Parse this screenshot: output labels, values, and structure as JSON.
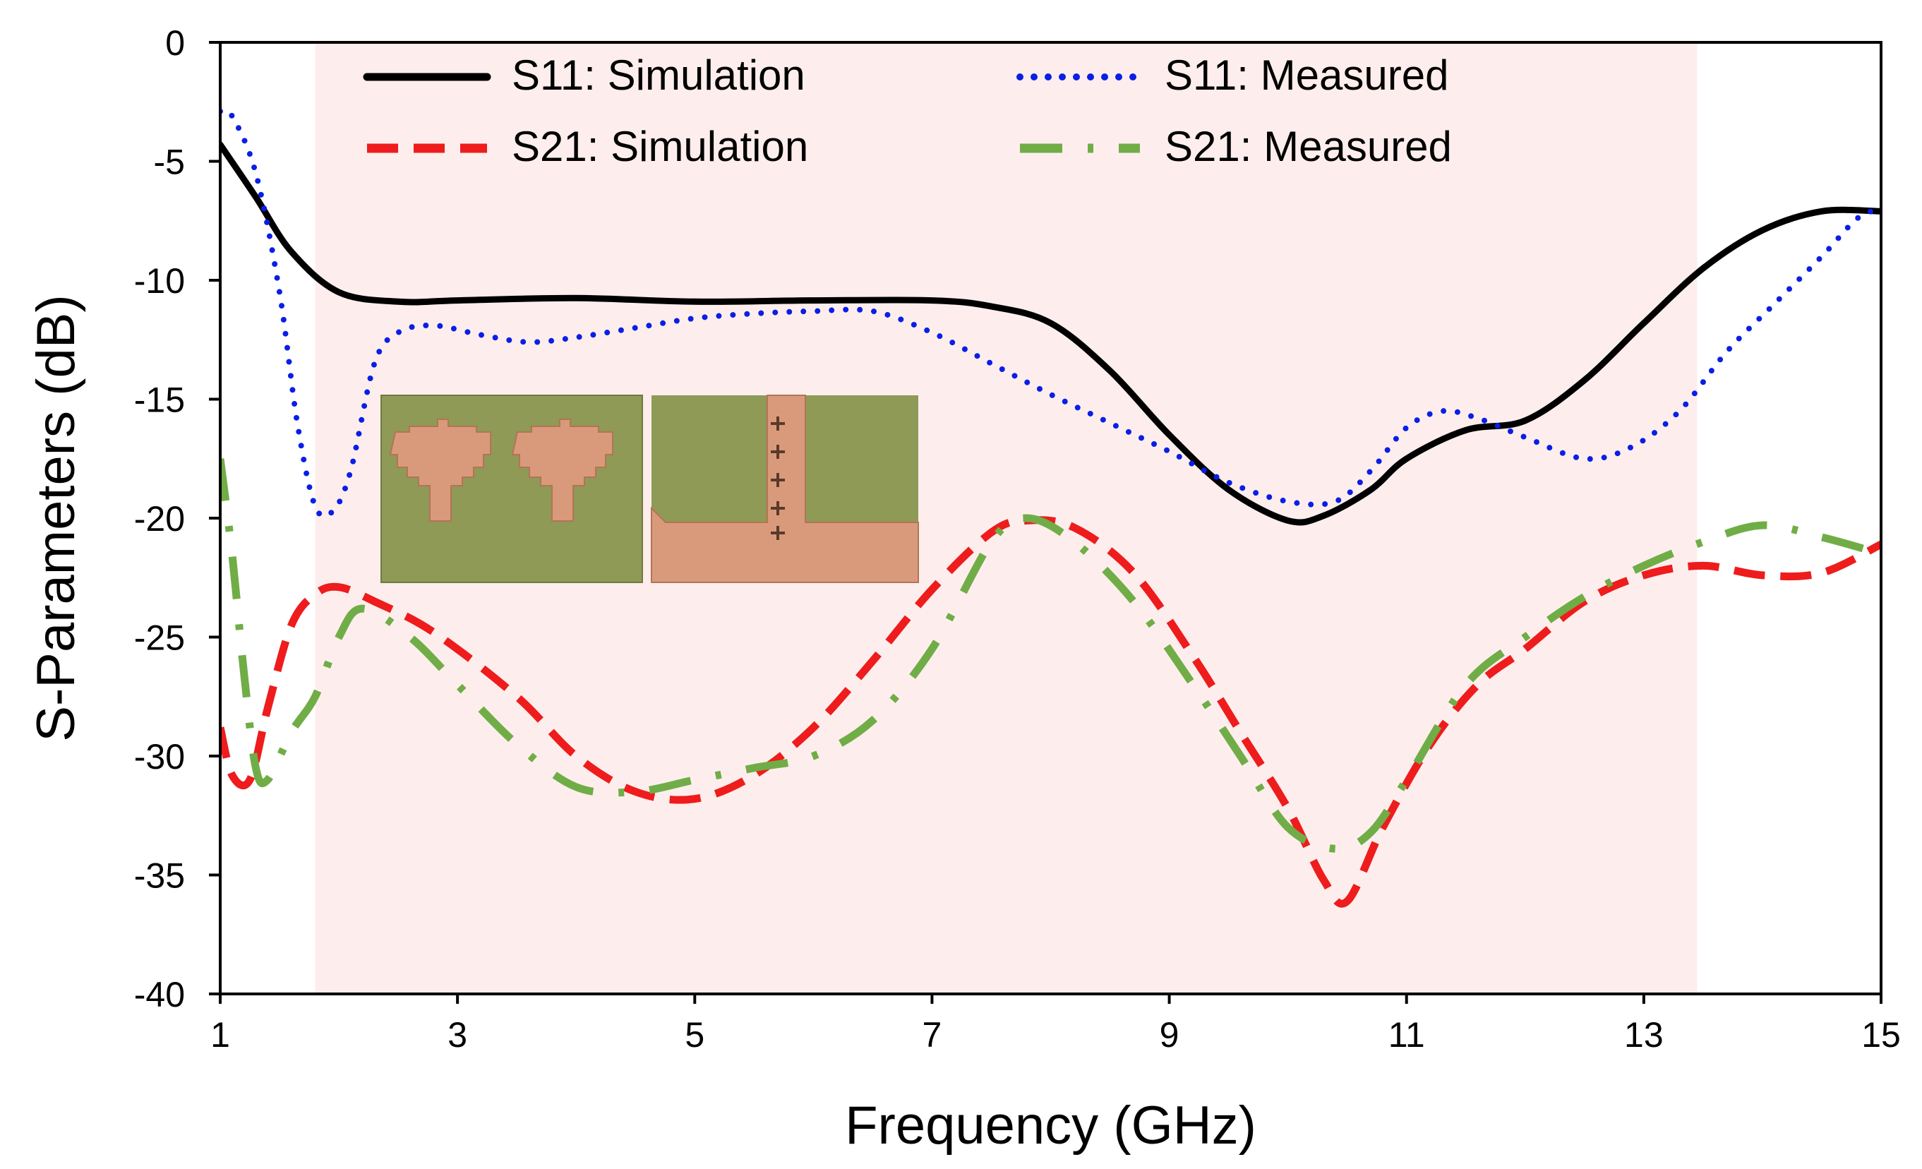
{
  "chart_data": {
    "type": "line",
    "title": "",
    "xlabel": "Frequency (GHz)",
    "ylabel": "S-Parameters (dB)",
    "xlim": [
      1,
      15
    ],
    "ylim": [
      -40,
      0
    ],
    "x_ticks": [
      1,
      3,
      5,
      7,
      9,
      11,
      13,
      15
    ],
    "y_ticks": [
      0,
      -5,
      -10,
      -15,
      -20,
      -25,
      -30,
      -35,
      -40
    ],
    "highlight_band": {
      "x_start": 1.8,
      "x_end": 13.45,
      "color": "#fdeeed"
    },
    "legend_position": "top",
    "series": [
      {
        "name": "S11: Simulation",
        "color": "#000000",
        "style": "solid",
        "points": [
          [
            1.0,
            -4.3
          ],
          [
            1.3,
            -6.5
          ],
          [
            1.6,
            -8.8
          ],
          [
            2.0,
            -10.5
          ],
          [
            2.5,
            -10.9
          ],
          [
            3.0,
            -10.85
          ],
          [
            4.0,
            -10.75
          ],
          [
            5.0,
            -10.9
          ],
          [
            6.0,
            -10.85
          ],
          [
            7.0,
            -10.85
          ],
          [
            7.5,
            -11.1
          ],
          [
            8.0,
            -11.8
          ],
          [
            8.5,
            -13.8
          ],
          [
            9.0,
            -16.5
          ],
          [
            9.5,
            -18.8
          ],
          [
            10.0,
            -20.1
          ],
          [
            10.3,
            -19.9
          ],
          [
            10.7,
            -18.8
          ],
          [
            11.0,
            -17.5
          ],
          [
            11.5,
            -16.3
          ],
          [
            12.0,
            -15.9
          ],
          [
            12.5,
            -14.2
          ],
          [
            13.0,
            -11.8
          ],
          [
            13.5,
            -9.5
          ],
          [
            14.0,
            -7.9
          ],
          [
            14.5,
            -7.1
          ],
          [
            15.0,
            -7.1
          ]
        ]
      },
      {
        "name": "S11: Measured",
        "color": "#0a1ee6",
        "style": "dotted",
        "points": [
          [
            1.0,
            -2.9
          ],
          [
            1.1,
            -3.1
          ],
          [
            1.3,
            -5.5
          ],
          [
            1.5,
            -10.5
          ],
          [
            1.65,
            -16.0
          ],
          [
            1.8,
            -19.5
          ],
          [
            1.95,
            -19.7
          ],
          [
            2.1,
            -18.0
          ],
          [
            2.3,
            -13.5
          ],
          [
            2.5,
            -12.2
          ],
          [
            2.8,
            -11.9
          ],
          [
            3.2,
            -12.3
          ],
          [
            3.6,
            -12.6
          ],
          [
            4.0,
            -12.4
          ],
          [
            4.5,
            -12.0
          ],
          [
            5.0,
            -11.6
          ],
          [
            5.5,
            -11.4
          ],
          [
            6.0,
            -11.3
          ],
          [
            6.5,
            -11.3
          ],
          [
            7.0,
            -12.2
          ],
          [
            7.5,
            -13.5
          ],
          [
            8.0,
            -14.8
          ],
          [
            8.5,
            -16.0
          ],
          [
            9.0,
            -17.2
          ],
          [
            9.5,
            -18.5
          ],
          [
            10.0,
            -19.3
          ],
          [
            10.4,
            -19.3
          ],
          [
            10.7,
            -18.0
          ],
          [
            11.0,
            -16.2
          ],
          [
            11.3,
            -15.5
          ],
          [
            11.6,
            -15.8
          ],
          [
            12.0,
            -16.6
          ],
          [
            12.5,
            -17.5
          ],
          [
            12.9,
            -17.0
          ],
          [
            13.3,
            -15.5
          ],
          [
            13.7,
            -13.0
          ],
          [
            14.1,
            -11.0
          ],
          [
            14.5,
            -9.0
          ],
          [
            14.8,
            -7.4
          ],
          [
            15.0,
            -7.0
          ]
        ]
      },
      {
        "name": "S21: Simulation",
        "color": "#ee1c1c",
        "style": "dashed",
        "points": [
          [
            1.0,
            -28.8
          ],
          [
            1.1,
            -30.8
          ],
          [
            1.25,
            -31.0
          ],
          [
            1.4,
            -28.0
          ],
          [
            1.6,
            -24.5
          ],
          [
            1.8,
            -23.2
          ],
          [
            2.0,
            -22.9
          ],
          [
            2.3,
            -23.5
          ],
          [
            2.8,
            -24.8
          ],
          [
            3.5,
            -27.5
          ],
          [
            4.0,
            -30.0
          ],
          [
            4.5,
            -31.5
          ],
          [
            5.0,
            -31.8
          ],
          [
            5.5,
            -30.8
          ],
          [
            6.0,
            -28.8
          ],
          [
            6.5,
            -26.0
          ],
          [
            7.0,
            -23.0
          ],
          [
            7.5,
            -20.6
          ],
          [
            7.8,
            -20.1
          ],
          [
            8.2,
            -20.4
          ],
          [
            8.7,
            -22.3
          ],
          [
            9.2,
            -25.8
          ],
          [
            9.6,
            -29.0
          ],
          [
            10.0,
            -32.2
          ],
          [
            10.3,
            -35.2
          ],
          [
            10.5,
            -36.1
          ],
          [
            10.8,
            -33.0
          ],
          [
            11.2,
            -29.5
          ],
          [
            11.6,
            -27.0
          ],
          [
            12.0,
            -25.5
          ],
          [
            12.5,
            -23.5
          ],
          [
            13.0,
            -22.4
          ],
          [
            13.5,
            -22.0
          ],
          [
            14.0,
            -22.4
          ],
          [
            14.5,
            -22.3
          ],
          [
            15.0,
            -21.1
          ]
        ]
      },
      {
        "name": "S21: Measured",
        "color": "#70ad47",
        "style": "dashdot",
        "points": [
          [
            1.0,
            -17.5
          ],
          [
            1.1,
            -21.5
          ],
          [
            1.2,
            -26.5
          ],
          [
            1.3,
            -30.5
          ],
          [
            1.4,
            -31.0
          ],
          [
            1.6,
            -29.0
          ],
          [
            1.8,
            -27.5
          ],
          [
            2.0,
            -25.0
          ],
          [
            2.2,
            -23.8
          ],
          [
            2.6,
            -25.0
          ],
          [
            3.0,
            -27.0
          ],
          [
            3.5,
            -29.5
          ],
          [
            4.0,
            -31.3
          ],
          [
            4.5,
            -31.5
          ],
          [
            5.0,
            -31.0
          ],
          [
            5.5,
            -30.5
          ],
          [
            6.0,
            -30.0
          ],
          [
            6.5,
            -28.5
          ],
          [
            7.0,
            -25.5
          ],
          [
            7.5,
            -21.0
          ],
          [
            7.8,
            -20.0
          ],
          [
            8.2,
            -21.0
          ],
          [
            8.7,
            -23.5
          ],
          [
            9.2,
            -27.0
          ],
          [
            9.6,
            -30.0
          ],
          [
            10.0,
            -33.0
          ],
          [
            10.4,
            -33.9
          ],
          [
            10.7,
            -33.2
          ],
          [
            11.0,
            -31.0
          ],
          [
            11.5,
            -27.0
          ],
          [
            12.0,
            -25.0
          ],
          [
            12.5,
            -23.3
          ],
          [
            13.0,
            -22.0
          ],
          [
            13.5,
            -21.0
          ],
          [
            14.0,
            -20.3
          ],
          [
            14.5,
            -20.8
          ],
          [
            15.0,
            -21.5
          ]
        ]
      }
    ],
    "inset_photos": [
      {
        "name": "front-side",
        "description": "two copper stepped patch elements with feed lines on green substrate"
      },
      {
        "name": "back-side",
        "description": "copper ground plane with central stub and cross marks"
      }
    ]
  }
}
